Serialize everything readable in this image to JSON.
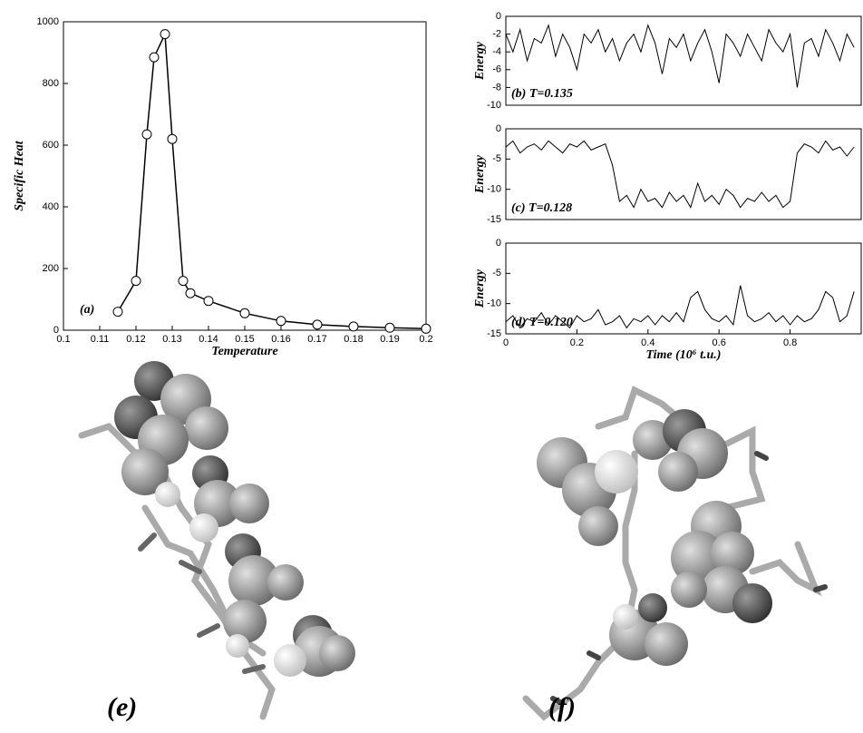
{
  "chart_data": [
    {
      "type": "line",
      "x_label": "Temperature",
      "y_label": "Specific Heat",
      "annotation": "(a)",
      "color": "#000000",
      "markers": true,
      "x": [
        0.115,
        0.12,
        0.123,
        0.125,
        0.128,
        0.13,
        0.133,
        0.135,
        0.14,
        0.15,
        0.16,
        0.17,
        0.18,
        0.19,
        0.2
      ],
      "values": [
        60,
        160,
        635,
        885,
        960,
        620,
        160,
        120,
        95,
        55,
        30,
        18,
        12,
        8,
        5
      ],
      "xlim": [
        0.1,
        0.2
      ],
      "ylim": [
        0,
        1000
      ],
      "xticks": [
        0.1,
        0.11,
        0.12,
        0.13,
        0.14,
        0.15,
        0.16,
        0.17,
        0.18,
        0.19,
        0.2
      ],
      "yticks": [
        0,
        200,
        400,
        600,
        800,
        1000
      ]
    },
    {
      "type": "line",
      "y_label": "Energy",
      "annotation": "(b) T=0.135",
      "color": "#000000",
      "markers": false,
      "x": [
        0,
        0.02,
        0.04,
        0.06,
        0.08,
        0.1,
        0.12,
        0.14,
        0.16,
        0.18,
        0.2,
        0.22,
        0.24,
        0.26,
        0.28,
        0.3,
        0.32,
        0.34,
        0.36,
        0.38,
        0.4,
        0.42,
        0.44,
        0.46,
        0.48,
        0.5,
        0.52,
        0.54,
        0.56,
        0.58,
        0.6,
        0.62,
        0.64,
        0.66,
        0.68,
        0.7,
        0.72,
        0.74,
        0.76,
        0.78,
        0.8,
        0.82,
        0.84,
        0.86,
        0.88,
        0.9,
        0.92,
        0.94,
        0.96,
        0.98
      ],
      "values": [
        -2,
        -4,
        -1.5,
        -5,
        -2.5,
        -3,
        -1,
        -4.5,
        -2,
        -3.5,
        -6,
        -2,
        -3,
        -1.5,
        -4,
        -2.5,
        -5,
        -3,
        -2,
        -4,
        -1,
        -3,
        -6.5,
        -2.5,
        -3.5,
        -2,
        -5,
        -3,
        -1.5,
        -4,
        -7.5,
        -2,
        -3,
        -4.5,
        -2,
        -3.5,
        -5,
        -1.5,
        -3,
        -4,
        -2,
        -8,
        -3,
        -2.5,
        -4.5,
        -1.5,
        -3,
        -5,
        -2,
        -3.5
      ],
      "xlim": [
        0,
        1
      ],
      "ylim": [
        -10,
        0
      ],
      "yticks": [
        0,
        -2,
        -4,
        -6,
        -8,
        -10
      ]
    },
    {
      "type": "line",
      "y_label": "Energy",
      "annotation": "(c) T=0.128",
      "color": "#000000",
      "markers": false,
      "x": [
        0,
        0.02,
        0.04,
        0.06,
        0.08,
        0.1,
        0.12,
        0.14,
        0.16,
        0.18,
        0.2,
        0.22,
        0.24,
        0.26,
        0.28,
        0.3,
        0.32,
        0.34,
        0.36,
        0.38,
        0.4,
        0.42,
        0.44,
        0.46,
        0.48,
        0.5,
        0.52,
        0.54,
        0.56,
        0.58,
        0.6,
        0.62,
        0.64,
        0.66,
        0.68,
        0.7,
        0.72,
        0.74,
        0.76,
        0.78,
        0.8,
        0.82,
        0.84,
        0.86,
        0.88,
        0.9,
        0.92,
        0.94,
        0.96,
        0.98
      ],
      "values": [
        -3,
        -2,
        -4,
        -3,
        -2.5,
        -3.5,
        -2,
        -3,
        -4,
        -2.5,
        -3,
        -2,
        -3.5,
        -3,
        -2.5,
        -6,
        -12,
        -11,
        -13,
        -10,
        -12,
        -11.5,
        -13,
        -10.5,
        -12,
        -11,
        -13,
        -9,
        -12,
        -11,
        -12.5,
        -10,
        -11,
        -13,
        -11.5,
        -12,
        -10.5,
        -12,
        -11,
        -13,
        -12,
        -4,
        -2.5,
        -3,
        -4,
        -2,
        -3.5,
        -3,
        -4.5,
        -3
      ],
      "xlim": [
        0,
        1
      ],
      "ylim": [
        -15,
        0
      ],
      "yticks": [
        0,
        -5,
        -10,
        -15
      ]
    },
    {
      "type": "line",
      "y_label": "Energy",
      "x_label": "Time (10⁶ t.u.)",
      "annotation": "(d) T=0.120",
      "color": "#000000",
      "markers": false,
      "x": [
        0,
        0.02,
        0.04,
        0.06,
        0.08,
        0.1,
        0.12,
        0.14,
        0.16,
        0.18,
        0.2,
        0.22,
        0.24,
        0.26,
        0.28,
        0.3,
        0.32,
        0.34,
        0.36,
        0.38,
        0.4,
        0.42,
        0.44,
        0.46,
        0.48,
        0.5,
        0.52,
        0.54,
        0.56,
        0.58,
        0.6,
        0.62,
        0.64,
        0.66,
        0.68,
        0.7,
        0.72,
        0.74,
        0.76,
        0.78,
        0.8,
        0.82,
        0.84,
        0.86,
        0.88,
        0.9,
        0.92,
        0.94,
        0.96,
        0.98
      ],
      "values": [
        -13,
        -12,
        -14,
        -12.5,
        -13,
        -11.5,
        -13.5,
        -12,
        -13,
        -14,
        -12,
        -13,
        -12.5,
        -11,
        -13.5,
        -13,
        -12,
        -14,
        -12.5,
        -13,
        -12,
        -13.5,
        -12,
        -13,
        -11.5,
        -13,
        -9,
        -8,
        -11,
        -12.5,
        -13,
        -12,
        -13.5,
        -7,
        -12,
        -13,
        -12.5,
        -11.5,
        -13,
        -12,
        -13.5,
        -12,
        -13,
        -12.5,
        -11,
        -8,
        -9,
        -13,
        -12,
        -8
      ],
      "xlim": [
        0,
        1
      ],
      "ylim": [
        -15,
        0
      ],
      "xticks": [
        0,
        0.2,
        0.4,
        0.6,
        0.8
      ],
      "yticks": [
        0,
        -5,
        -10,
        -15
      ]
    }
  ],
  "panel_labels": [
    "(e)",
    "(f)"
  ]
}
